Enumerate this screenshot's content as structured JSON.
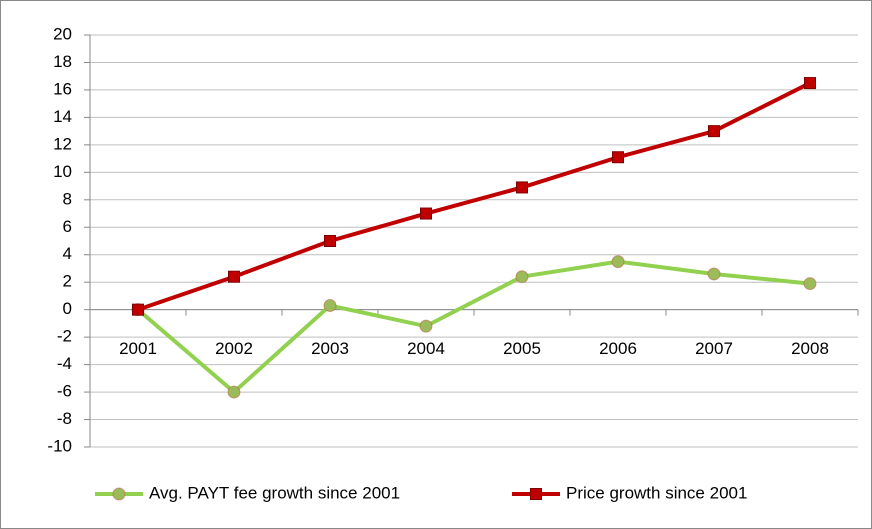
{
  "chart_data": {
    "type": "line",
    "categories": [
      "2001",
      "2002",
      "2003",
      "2004",
      "2005",
      "2006",
      "2007",
      "2008"
    ],
    "series": [
      {
        "name": "Avg. PAYT fee growth since 2001",
        "color": "#92d050",
        "marker": "circle",
        "values": [
          0,
          -6,
          0.3,
          -1.2,
          2.4,
          3.5,
          2.6,
          1.9
        ]
      },
      {
        "name": "Price growth since 2001",
        "color": "#c00000",
        "marker": "square",
        "values": [
          0,
          2.4,
          5,
          7,
          8.9,
          11.1,
          13,
          16.5
        ]
      }
    ],
    "ylim": [
      -10,
      20
    ],
    "yticks": [
      -10,
      -8,
      -6,
      -4,
      -2,
      0,
      2,
      4,
      6,
      8,
      10,
      12,
      14,
      16,
      18,
      20
    ],
    "grid": true,
    "legend": "bottom"
  }
}
